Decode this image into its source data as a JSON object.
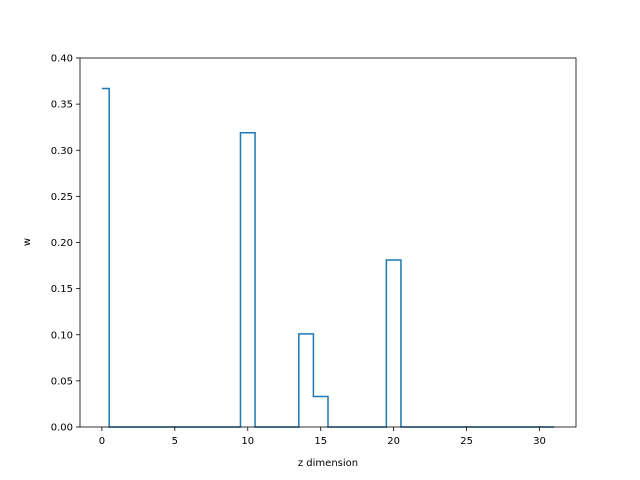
{
  "chart_data": {
    "type": "line",
    "drawstyle": "steps-mid",
    "title": "",
    "xlabel": "z dimension",
    "ylabel": "w",
    "xlim": [
      -1.5,
      32.5
    ],
    "ylim": [
      0,
      0.4
    ],
    "xticks": [
      0,
      5,
      10,
      15,
      20,
      25,
      30
    ],
    "yticks": [
      0.0,
      0.05,
      0.1,
      0.15,
      0.2,
      0.25,
      0.3,
      0.35,
      0.4
    ],
    "ytick_labels": [
      "0.00",
      "0.05",
      "0.10",
      "0.15",
      "0.20",
      "0.25",
      "0.30",
      "0.35",
      "0.40"
    ],
    "grid": false,
    "series": [
      {
        "color": "#1f77b4",
        "x": [
          0,
          1,
          2,
          3,
          4,
          5,
          6,
          7,
          8,
          9,
          10,
          11,
          12,
          13,
          14,
          15,
          16,
          17,
          18,
          19,
          20,
          21,
          22,
          23,
          24,
          25,
          26,
          27,
          28,
          29,
          30,
          31
        ],
        "values": [
          0.367,
          0,
          0,
          0,
          0,
          0,
          0,
          0,
          0,
          0,
          0.319,
          0,
          0,
          0,
          0.101,
          0.033,
          0,
          0,
          0,
          0,
          0.181,
          0,
          0,
          0,
          0,
          0,
          0,
          0,
          0,
          0,
          0,
          0
        ]
      }
    ]
  }
}
